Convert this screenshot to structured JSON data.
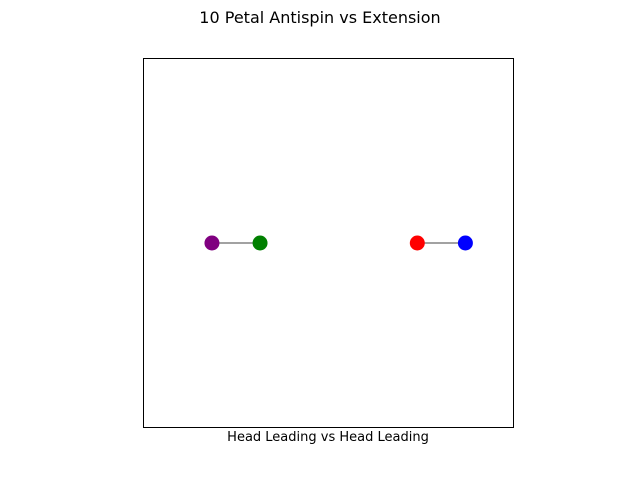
{
  "chart_data": {
    "type": "scatter",
    "title": "10 Petal Antispin vs Extension",
    "xlabel": "Head Leading vs Head Leading",
    "ylabel": "",
    "xlim": [
      -1,
      1
    ],
    "ylim": [
      -1,
      1
    ],
    "grid": false,
    "show_ticks": false,
    "points": [
      {
        "x": -0.63,
        "y": 0.0,
        "color": "#800080"
      },
      {
        "x": -0.37,
        "y": 0.0,
        "color": "#008000"
      },
      {
        "x": 0.48,
        "y": 0.0,
        "color": "#ff0000"
      },
      {
        "x": 0.74,
        "y": 0.0,
        "color": "#0000ff"
      }
    ],
    "segments": [
      {
        "from": 0,
        "to": 1,
        "color": "#444444"
      },
      {
        "from": 2,
        "to": 3,
        "color": "#444444"
      }
    ]
  }
}
